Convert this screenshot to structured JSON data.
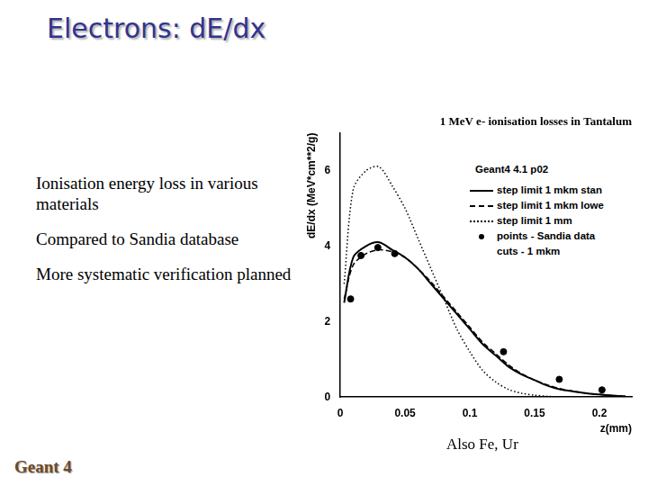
{
  "slide": {
    "title": "Electrons: dE/dx",
    "bullets": [
      "Ionisation energy loss in various materials",
      "Compared to Sandia database",
      "More systematic verification planned"
    ],
    "note": "Also Fe, Ur",
    "logo": "Geant 4"
  },
  "chart_data": {
    "type": "line",
    "title": "1 MeV e- ionisation losses in Tantalum",
    "x_label": "z(mm)",
    "y_label": "dE/dx (MeV*cm**2/g)",
    "xlim": [
      0,
      0.225
    ],
    "ylim": [
      0,
      7
    ],
    "xticks": [
      0,
      0.05,
      0.1,
      0.15,
      0.2
    ],
    "yticks": [
      0,
      2,
      4,
      6
    ],
    "grid": false,
    "legend": "upper right",
    "legend_title": "Geant4 4.1 p02",
    "legend_note": "cuts - 1 mkm",
    "series": [
      {
        "name": "step limit 1 mkm stan",
        "type": "line",
        "line_style": "solid",
        "color": "#000000",
        "x": [
          0.003,
          0.01,
          0.02,
          0.03,
          0.04,
          0.05,
          0.06,
          0.07,
          0.08,
          0.09,
          0.1,
          0.11,
          0.12,
          0.13,
          0.14,
          0.15,
          0.16,
          0.17,
          0.18,
          0.19,
          0.2,
          0.21,
          0.22
        ],
        "values": [
          2.5,
          3.7,
          4.0,
          4.1,
          3.9,
          3.7,
          3.4,
          3.0,
          2.6,
          2.2,
          1.8,
          1.4,
          1.1,
          0.8,
          0.6,
          0.45,
          0.3,
          0.2,
          0.15,
          0.1,
          0.07,
          0.04,
          0.02
        ]
      },
      {
        "name": "step limit 1 mkm lowe",
        "type": "line",
        "line_style": "dashed",
        "color": "#000000",
        "x": [
          0.003,
          0.01,
          0.02,
          0.03,
          0.04,
          0.05,
          0.06,
          0.07,
          0.08,
          0.09,
          0.1,
          0.11,
          0.12,
          0.13,
          0.14,
          0.15,
          0.16,
          0.17,
          0.18,
          0.19,
          0.2,
          0.21,
          0.22
        ],
        "values": [
          2.6,
          3.5,
          3.8,
          3.9,
          3.85,
          3.7,
          3.4,
          3.05,
          2.65,
          2.25,
          1.85,
          1.45,
          1.15,
          0.85,
          0.62,
          0.45,
          0.32,
          0.22,
          0.15,
          0.1,
          0.07,
          0.04,
          0.02
        ]
      },
      {
        "name": "step limit 1 mm",
        "type": "line",
        "line_style": "dotted",
        "color": "#000000",
        "x": [
          0.003,
          0.01,
          0.02,
          0.03,
          0.04,
          0.05,
          0.06,
          0.07,
          0.08,
          0.09,
          0.1,
          0.11,
          0.12,
          0.13,
          0.14,
          0.15,
          0.16,
          0.17
        ],
        "values": [
          3.0,
          5.5,
          6.0,
          6.1,
          5.6,
          5.0,
          4.2,
          3.4,
          2.6,
          1.8,
          1.2,
          0.7,
          0.4,
          0.2,
          0.1,
          0.05,
          0.02,
          0
        ]
      },
      {
        "name": "points - Sandia data",
        "type": "scatter",
        "marker": "circle",
        "color": "#000000",
        "x": [
          0.008,
          0.016,
          0.029,
          0.042,
          0.126,
          0.169,
          0.202
        ],
        "values": [
          2.6,
          3.75,
          3.96,
          3.8,
          1.2,
          0.47,
          0.19
        ]
      }
    ]
  }
}
